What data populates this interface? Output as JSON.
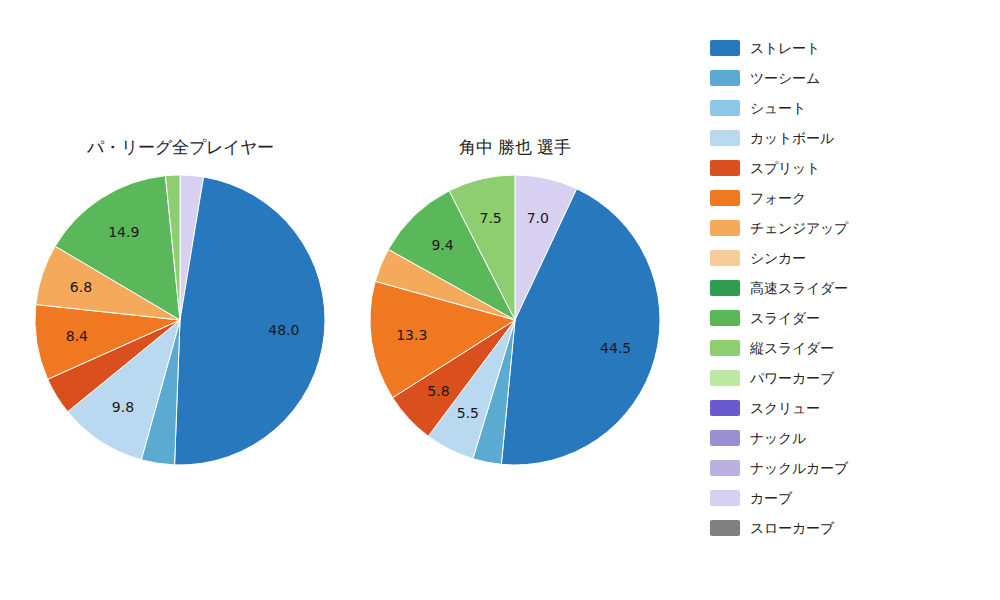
{
  "chart_data": [
    {
      "type": "pie",
      "title": "パ・リーグ全プレイヤー",
      "values": [
        2.6,
        48.0,
        3.7,
        9.8,
        4.2,
        8.4,
        6.8,
        14.9,
        1.6
      ],
      "value_labels": [
        null,
        "48.0",
        null,
        "9.8",
        null,
        "8.4",
        "6.8",
        "14.9",
        null
      ],
      "colors": [
        "#d8d0f0",
        "#2878bd",
        "#5aaad2",
        "#b8d9ef",
        "#d94f1e",
        "#f07820",
        "#f5a95a",
        "#5ab85a",
        "#8fce70"
      ]
    },
    {
      "type": "pie",
      "title": "角中 勝也  選手",
      "values": [
        7.0,
        44.5,
        3.2,
        5.5,
        5.8,
        13.3,
        3.8,
        9.4,
        7.5
      ],
      "value_labels": [
        "7.0",
        "44.5",
        null,
        "5.5",
        "5.8",
        "13.3",
        null,
        "9.4",
        "7.5"
      ],
      "colors": [
        "#d8d0f0",
        "#2878bd",
        "#5aaad2",
        "#b8d9ef",
        "#d94f1e",
        "#f07820",
        "#f5a95a",
        "#5ab85a",
        "#8fce70"
      ]
    },
    {
      "type": "legend",
      "categories": [
        "ストレート",
        "ツーシーム",
        "シュート",
        "カットボール",
        "スプリット",
        "フォーク",
        "チェンジアップ",
        "シンカー",
        "高速スライダー",
        "スライダー",
        "縦スライダー",
        "パワーカーブ",
        "スクリュー",
        "ナックル",
        "ナックルカーブ",
        "カーブ",
        "スローカーブ"
      ],
      "colors": [
        "#2878bd",
        "#5aaad2",
        "#8ec8e8",
        "#b8d9ef",
        "#d94f1e",
        "#f07820",
        "#f5a95a",
        "#f7cc99",
        "#2e9e4e",
        "#5ab85a",
        "#8fce70",
        "#bce8a0",
        "#6a5acd",
        "#9a8fd0",
        "#bcb0e0",
        "#d8d0f0",
        "#808080"
      ]
    }
  ]
}
